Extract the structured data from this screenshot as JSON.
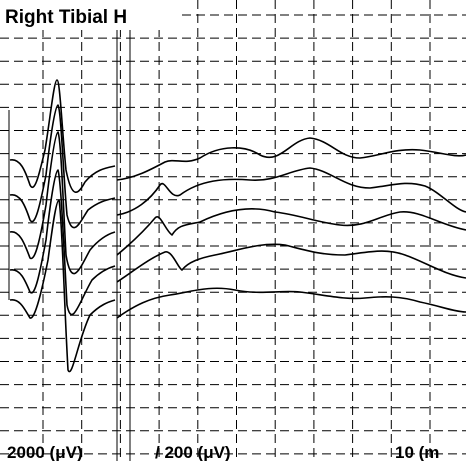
{
  "header": {
    "title": "Right Tibial H"
  },
  "scales": {
    "sensitivity_left": "2000 (μV)",
    "sensitivity_right": "/ 200 (μV)",
    "sweep": "10 (m"
  }
}
